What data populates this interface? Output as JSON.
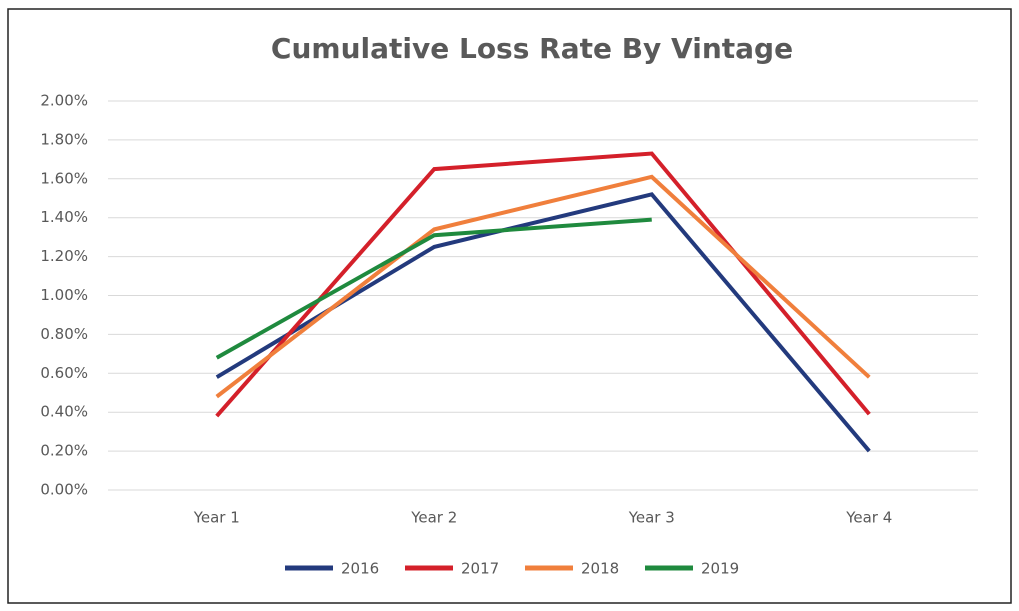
{
  "chart_data": {
    "type": "line",
    "title": "Cumulative Loss Rate By Vintage",
    "categories": [
      "Year 1",
      "Year 2",
      "Year 3",
      "Year 4"
    ],
    "series": [
      {
        "name": "2016",
        "color": "#233a7d",
        "values": [
          0.58,
          1.25,
          1.52,
          0.2
        ]
      },
      {
        "name": "2017",
        "color": "#d4202a",
        "values": [
          0.38,
          1.65,
          1.73,
          0.39
        ]
      },
      {
        "name": "2018",
        "color": "#f07f3c",
        "values": [
          0.48,
          1.34,
          1.61,
          0.58
        ]
      },
      {
        "name": "2019",
        "color": "#1f8a3e",
        "values": [
          0.68,
          1.31,
          1.39,
          null
        ]
      }
    ],
    "ylim": [
      0,
      2
    ],
    "yticks": [
      {
        "value": 0,
        "label": "0.00%"
      },
      {
        "value": 0.2,
        "label": "0.20%"
      },
      {
        "value": 0.4,
        "label": "0.40%"
      },
      {
        "value": 0.6,
        "label": "0.60%"
      },
      {
        "value": 0.8,
        "label": "0.80%"
      },
      {
        "value": 1,
        "label": "1.00%"
      },
      {
        "value": 1.2,
        "label": "1.20%"
      },
      {
        "value": 1.4,
        "label": "1.40%"
      },
      {
        "value": 1.6,
        "label": "1.60%"
      },
      {
        "value": 1.8,
        "label": "1.80%"
      },
      {
        "value": 2,
        "label": "2.00%"
      }
    ],
    "grid": true,
    "legend": "bottom"
  }
}
